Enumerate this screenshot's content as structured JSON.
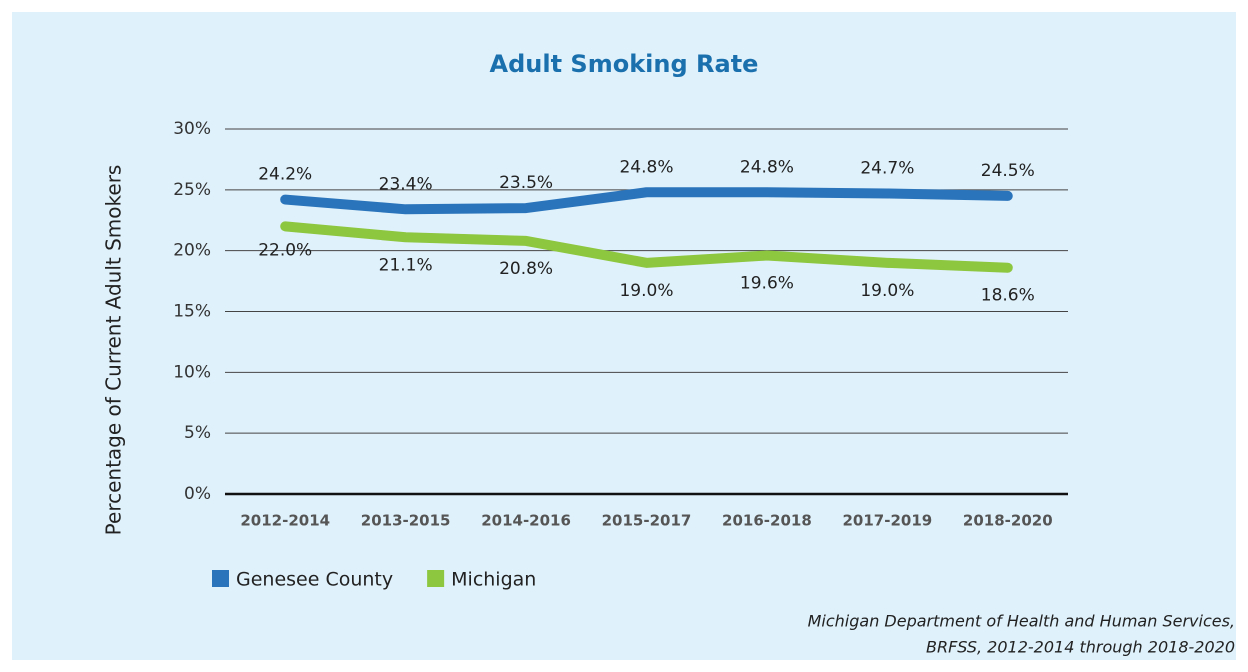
{
  "chart_data": {
    "type": "line",
    "title": "Adult Smoking Rate",
    "y_label": "Percentage of Current Adult Smokers",
    "categories": [
      "2012-2014",
      "2013-2015",
      "2014-2016",
      "2015-2017",
      "2016-2018",
      "2017-2019",
      "2018-2020"
    ],
    "series": [
      {
        "name": "Genesee County",
        "color": "#2a74bb",
        "values": [
          24.2,
          23.4,
          23.5,
          24.8,
          24.8,
          24.7,
          24.5
        ],
        "value_labels": [
          "24.2%",
          "23.4%",
          "23.5%",
          "24.8%",
          "24.8%",
          "24.7%",
          "24.5%"
        ]
      },
      {
        "name": "Michigan",
        "color": "#8dc63f",
        "values": [
          22.0,
          21.1,
          20.8,
          19.0,
          19.6,
          19.0,
          18.6
        ],
        "value_labels": [
          "22.0%",
          "21.1%",
          "20.8%",
          "19.0%",
          "19.6%",
          "19.0%",
          "18.6%"
        ]
      }
    ],
    "ylim": [
      0,
      30
    ],
    "yticks": [
      {
        "value": 0,
        "label": "0%"
      },
      {
        "value": 5,
        "label": "5%"
      },
      {
        "value": 10,
        "label": "10%"
      },
      {
        "value": 15,
        "label": "15%"
      },
      {
        "value": 20,
        "label": "20%"
      },
      {
        "value": 25,
        "label": "25%"
      },
      {
        "value": 30,
        "label": "30%"
      }
    ],
    "grid": true,
    "legend": "bottom-left",
    "source": [
      "Michigan Department of Health and Human Services,",
      "BRFSS, 2012-2014 through 2018-2020"
    ]
  }
}
